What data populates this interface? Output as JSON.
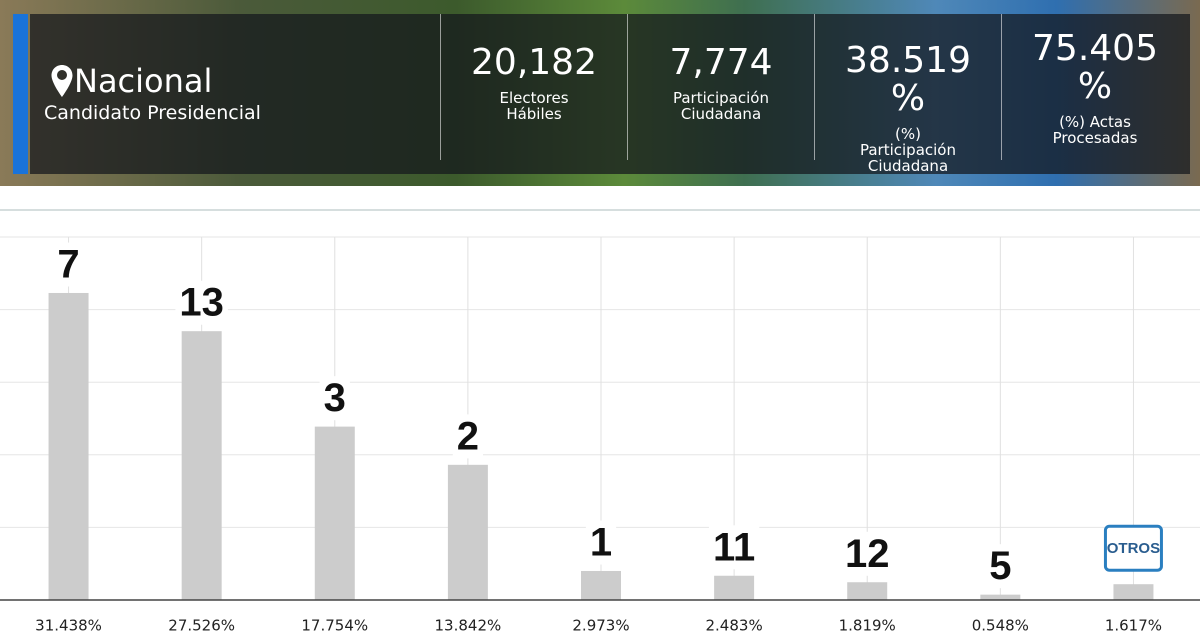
{
  "header": {
    "location": "Nacional",
    "subtitle": "Candidato Presidencial",
    "stats": [
      {
        "value": "20,182",
        "label": "Electores Hábiles"
      },
      {
        "value": "7,774",
        "label": "Participación Ciudadana"
      },
      {
        "value": "38.519 %",
        "label": "(%) Participación Ciudadana"
      },
      {
        "value": "75.405 %",
        "label": "(%) Actas Procesadas"
      }
    ]
  },
  "chart_data": {
    "type": "bar",
    "categories": [
      "7",
      "13",
      "3",
      "2",
      "1",
      "11",
      "12",
      "5",
      "OTROS"
    ],
    "values": [
      31.438,
      27.526,
      17.754,
      13.842,
      2.973,
      2.483,
      1.819,
      0.548,
      1.617
    ],
    "value_labels": [
      "31.438%",
      "27.526%",
      "17.754%",
      "13.842%",
      "2.973%",
      "2.483%",
      "1.819%",
      "0.548%",
      "1.617%"
    ],
    "color": "#cccccc",
    "ylim": [
      0,
      37.17
    ],
    "grid": true
  }
}
